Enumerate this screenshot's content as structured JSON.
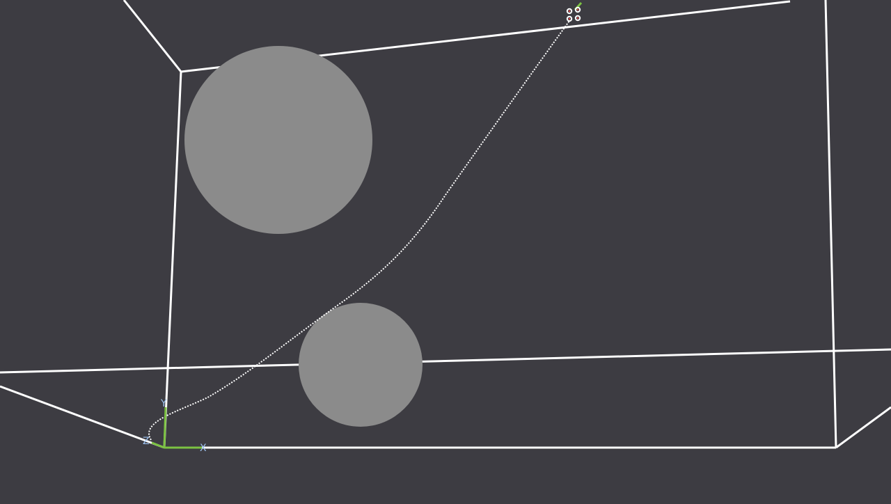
{
  "viewport": {
    "background_color": "#3d3c42",
    "wireframe_color": "#ffffff",
    "sphere_color": "#8b8b8b",
    "trajectory_color": "#ffffff",
    "trajectory_style": "dotted",
    "axis_line_color": "#7cc242",
    "axis_label_color": "#9ec3f0"
  },
  "axes": {
    "x_label": "X",
    "y_label": "Y",
    "z_label": "Z"
  },
  "end_effector": {
    "icon": "gripper-icon",
    "marker_color": "#e04a4a",
    "tip_color": "#7cc242"
  }
}
